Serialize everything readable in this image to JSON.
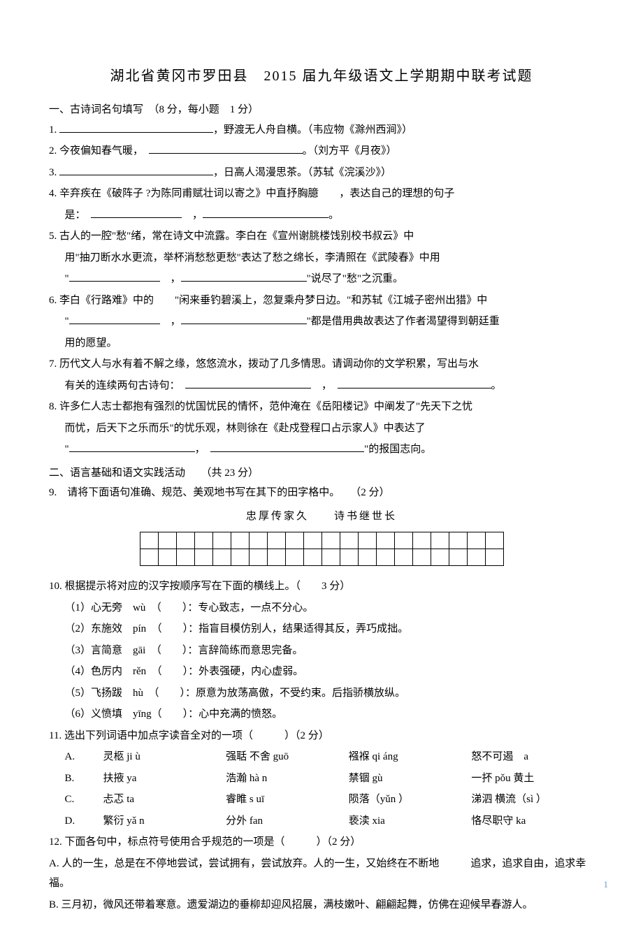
{
  "title": "湖北省黄冈市罗田县　2015 届九年级语文上学期期中联考试题",
  "section1": {
    "header": "一、古诗词名句填写　（8 分，每小题　1 分）",
    "q1_suffix": "，野渡无人舟自横。（韦应物《滁州西涧》）",
    "q2_prefix": "2. 今夜偏知春气暖，",
    "q2_suffix": "。（刘方平《月夜》）",
    "q3_suffix": "，日高人渴漫思茶。（苏轼《浣溪沙》）",
    "q4_prefix": "4. 辛弃疾在《破阵子 ?为陈同甫赋壮词以寄之》中直抒胸臆　　，表达自己的理想的句子",
    "q4_line2": "是：",
    "q5_line1": "5. 古人的一腔\"愁\"绪，常在诗文中流露。李白在《宣州谢朓楼饯别校书叔云》中",
    "q5_line2": "用\"抽刀断水水更流，举杯消愁愁更愁\"表达了愁之绵长，李清照在《武陵春》中用",
    "q5_line3_suffix": "\"说尽了\"愁\"之沉重。",
    "q6_line1": "6. 李白《行路难》中的　　\"闲来垂钓碧溪上，忽复乘舟梦日边。\"和苏轼《江城子密州出猎》中",
    "q6_line2_suffix": "\"都是借用典故表达了作者渴望得到朝廷重",
    "q6_line3": "用的愿望。",
    "q7_line1": "7. 历代文人与水有着不解之缘，悠悠流水，拨动了几多情思。请调动你的文学积累，写出与水",
    "q7_line2": "有关的连续两句古诗句：",
    "q8_line1": "8. 许多仁人志士都抱有强烈的忧国忧民的情怀，范仲淹在《岳阳楼记》中阐发了\"先天下之忧",
    "q8_line2": "而忧，后天下之乐而乐\"的忧乐观，林则徐在《赴戍登程口占示家人》中表达了",
    "q8_line3_suffix": "\"的报国志向。"
  },
  "section2": {
    "header": "二、语言基础和语文实践活动　　（共 23 分）",
    "q9": "9.　请将下面语句准确、规范、美观地书写在其下的田字格中。　　（2 分）",
    "q9_text": "忠厚传家久　　诗书继世长",
    "q10": "10. 根据提示将对应的汉字按顺序写在下面的横线上。（　　3 分）",
    "q10_items": [
      "（1）心无旁　wù　（　　）：专心致志，一点不分心。",
      "（2）东施效　pín　（　　）：指盲目模仿别人，结果适得其反，弄巧成拙。",
      "（3）言简意　gāi　（　　）：言辞简练而意思完备。",
      "（4）色厉内　rěn　（　　）：外表强硬，内心虚弱。",
      "（5）飞扬跋　hù　（　　）：原意为放荡高傲，不受约束。后指骄横放纵。",
      "（6）义愤填　yīng（　　）：心中充满的愤怒。"
    ],
    "q11": "11. 选出下列词语中加点字读音全对的一项（　　　）（2 分）",
    "q11_options": [
      {
        "label": "A.",
        "c1": "灵柩 ji ù",
        "c2": "强聒 不舍 guō",
        "c3": "襁褓 qi áng",
        "c4": "怒不可遏　a"
      },
      {
        "label": "B.",
        "c1": "扶掖 ya",
        "c2": "浩瀚 hà n",
        "c3": "禁锢 gù",
        "c4": "一抔 pǒu 黄土"
      },
      {
        "label": "C.",
        "c1": "忐忑 ta",
        "c2": "睿睢 s uī",
        "c3": "陨落（yǔn ）",
        "c4": "涕泗 横流（sì ）"
      },
      {
        "label": "D.",
        "c1": "繁衍 yǎ n",
        "c2": "分外 fan",
        "c3": "亵渎 xia",
        "c4": "恪尽职守 ka"
      }
    ],
    "q12": "12. 下面各句中，标点符号使用合乎规范的一项是（　　　）（2 分）",
    "q12a": "A. 人的一生，总是在不停地尝试，尝试拥有，尝试放弃。人的一生，又始终在不断地　　　追求，追求自由，追求幸福。",
    "q12b": "B. 三月初，微风还带着寒意。遗爱湖边的垂柳却迎风招展，满枝嫩叶、翩翩起舞，仿佛在迎候早春游人。"
  },
  "grid": {
    "rows": 2,
    "cols": 20
  },
  "pageNumber": "1",
  "colors": {
    "pageNum": "#5b9bd5",
    "text": "#000000",
    "bg": "#ffffff"
  }
}
